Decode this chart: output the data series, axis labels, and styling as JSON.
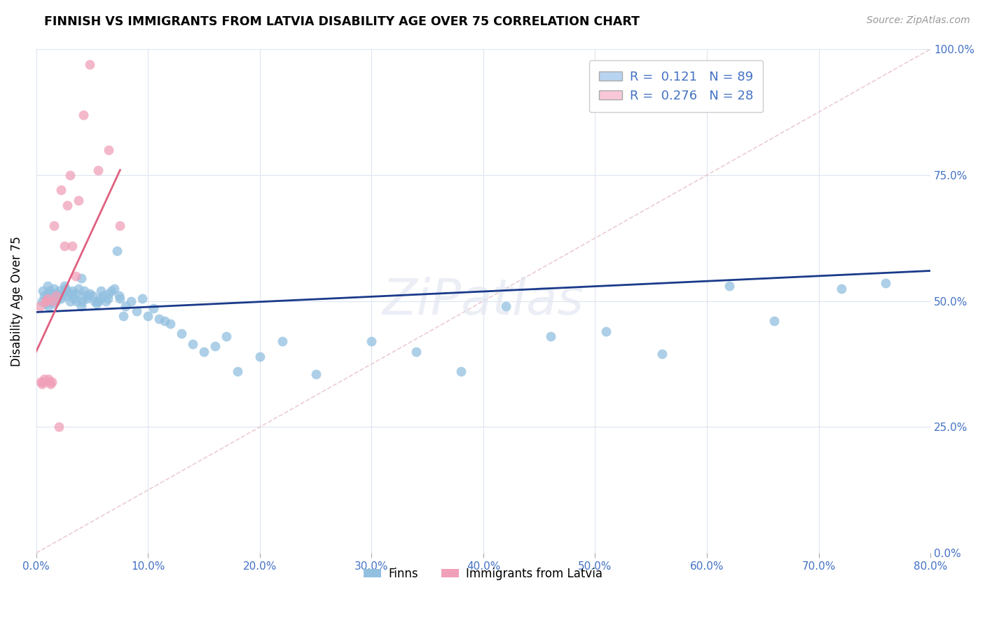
{
  "title": "FINNISH VS IMMIGRANTS FROM LATVIA DISABILITY AGE OVER 75 CORRELATION CHART",
  "source": "Source: ZipAtlas.com",
  "ylabel": "Disability Age Over 75",
  "xlim": [
    0.0,
    0.8
  ],
  "ylim": [
    0.0,
    1.0
  ],
  "x_tick_vals": [
    0.0,
    0.1,
    0.2,
    0.3,
    0.4,
    0.5,
    0.6,
    0.7,
    0.8
  ],
  "y_tick_vals": [
    0.0,
    0.25,
    0.5,
    0.75,
    1.0
  ],
  "finn_color": "#92c0e0",
  "latvia_color": "#f0a0b8",
  "finn_line_color": "#1a3a8a",
  "latvia_line_color": "#e06080",
  "diagonal_color": "#e8c0c8",
  "background_color": "#ffffff",
  "grid_color": "#dde5f0",
  "tick_color": "#4472c4",
  "legend_box_finn": "#b8d4f0",
  "legend_box_latvia": "#f8c8d8",
  "watermark": "ZiPatlas",
  "finn_scatter_x": [
    0.005,
    0.006,
    0.007,
    0.008,
    0.009,
    0.01,
    0.01,
    0.011,
    0.012,
    0.012,
    0.013,
    0.014,
    0.015,
    0.015,
    0.016,
    0.017,
    0.018,
    0.018,
    0.019,
    0.02,
    0.021,
    0.022,
    0.023,
    0.024,
    0.025,
    0.026,
    0.027,
    0.028,
    0.03,
    0.031,
    0.032,
    0.033,
    0.034,
    0.035,
    0.036,
    0.038,
    0.04,
    0.04,
    0.041,
    0.042,
    0.043,
    0.045,
    0.046,
    0.048,
    0.05,
    0.052,
    0.054,
    0.055,
    0.057,
    0.058,
    0.06,
    0.062,
    0.064,
    0.065,
    0.067,
    0.07,
    0.072,
    0.074,
    0.075,
    0.078,
    0.08,
    0.085,
    0.09,
    0.095,
    0.1,
    0.105,
    0.11,
    0.115,
    0.12,
    0.13,
    0.14,
    0.15,
    0.16,
    0.17,
    0.18,
    0.2,
    0.22,
    0.25,
    0.3,
    0.34,
    0.38,
    0.42,
    0.46,
    0.51,
    0.56,
    0.62,
    0.66,
    0.72,
    0.76
  ],
  "finn_scatter_y": [
    0.5,
    0.52,
    0.51,
    0.495,
    0.505,
    0.515,
    0.53,
    0.49,
    0.5,
    0.52,
    0.51,
    0.505,
    0.515,
    0.495,
    0.525,
    0.51,
    0.5,
    0.515,
    0.505,
    0.51,
    0.52,
    0.505,
    0.51,
    0.515,
    0.53,
    0.525,
    0.52,
    0.51,
    0.5,
    0.515,
    0.52,
    0.51,
    0.505,
    0.515,
    0.5,
    0.525,
    0.545,
    0.49,
    0.5,
    0.51,
    0.52,
    0.505,
    0.51,
    0.515,
    0.51,
    0.5,
    0.495,
    0.5,
    0.505,
    0.52,
    0.51,
    0.5,
    0.505,
    0.515,
    0.52,
    0.525,
    0.6,
    0.51,
    0.505,
    0.47,
    0.49,
    0.5,
    0.48,
    0.505,
    0.47,
    0.485,
    0.465,
    0.46,
    0.455,
    0.435,
    0.415,
    0.4,
    0.41,
    0.43,
    0.36,
    0.39,
    0.42,
    0.355,
    0.42,
    0.4,
    0.36,
    0.49,
    0.43,
    0.44,
    0.395,
    0.53,
    0.46,
    0.525,
    0.535
  ],
  "latvia_scatter_x": [
    0.003,
    0.004,
    0.005,
    0.006,
    0.007,
    0.008,
    0.009,
    0.01,
    0.011,
    0.012,
    0.013,
    0.014,
    0.015,
    0.016,
    0.018,
    0.02,
    0.022,
    0.025,
    0.028,
    0.03,
    0.032,
    0.035,
    0.038,
    0.042,
    0.048,
    0.055,
    0.065,
    0.075
  ],
  "latvia_scatter_y": [
    0.49,
    0.34,
    0.335,
    0.34,
    0.345,
    0.5,
    0.5,
    0.505,
    0.345,
    0.34,
    0.335,
    0.34,
    0.5,
    0.65,
    0.51,
    0.25,
    0.72,
    0.61,
    0.69,
    0.75,
    0.61,
    0.55,
    0.7,
    0.87,
    0.97,
    0.76,
    0.8,
    0.65
  ],
  "finn_line_x": [
    0.0,
    0.8
  ],
  "finn_line_y": [
    0.478,
    0.56
  ],
  "latvia_line_x": [
    0.0,
    0.075
  ],
  "latvia_line_y": [
    0.4,
    0.76
  ]
}
